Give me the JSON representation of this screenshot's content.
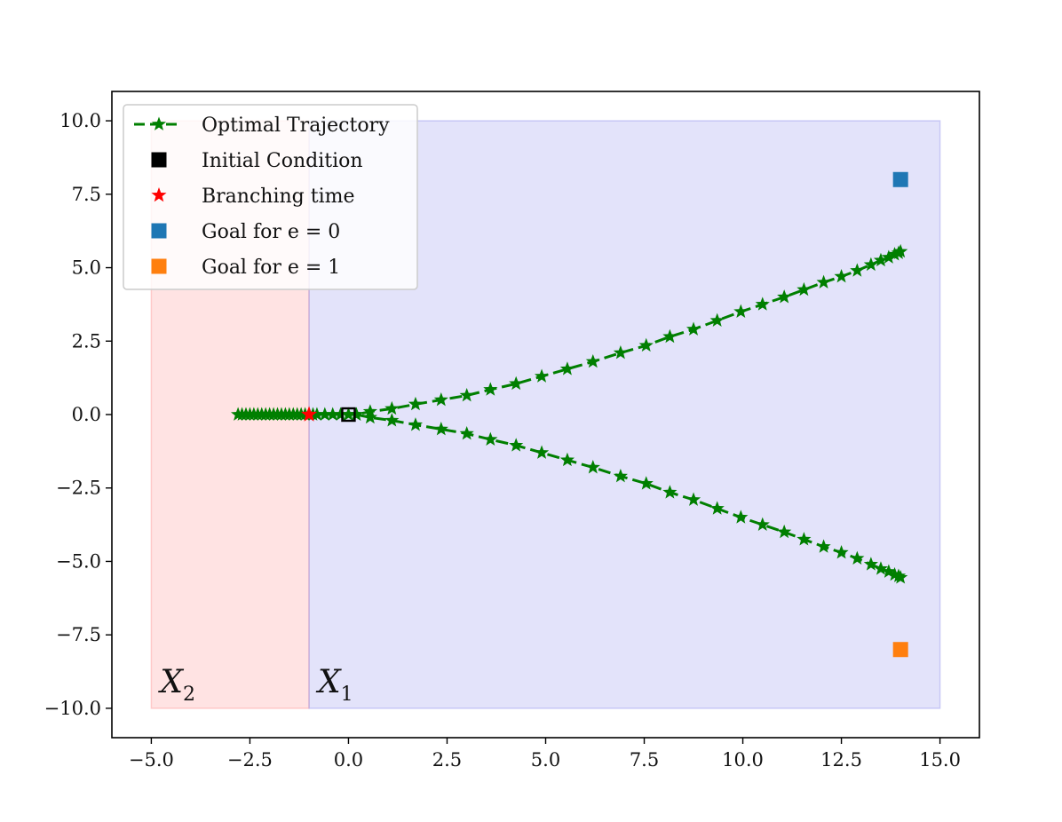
{
  "chart_data": {
    "type": "scatter",
    "xlim": [
      -6.0,
      16.0
    ],
    "ylim": [
      -11.0,
      11.0
    ],
    "x_ticks": [
      -5.0,
      -2.5,
      0.0,
      2.5,
      5.0,
      7.5,
      10.0,
      12.5,
      15.0
    ],
    "y_ticks": [
      -10.0,
      -7.5,
      -5.0,
      -2.5,
      0.0,
      2.5,
      5.0,
      7.5,
      10.0
    ],
    "x_tick_labels": [
      "−5.0",
      "−2.5",
      "0.0",
      "2.5",
      "5.0",
      "7.5",
      "10.0",
      "12.5",
      "15.0"
    ],
    "y_tick_labels": [
      "−10.0",
      "−7.5",
      "−5.0",
      "−2.5",
      "0.0",
      "2.5",
      "5.0",
      "7.5",
      "10.0"
    ],
    "grid": false,
    "legend_position": "top-left",
    "regions": [
      {
        "label": "X",
        "subscript": "2",
        "x_range": [
          -5.0,
          -1.0
        ],
        "y_range": [
          -10.0,
          10.0
        ],
        "color": "#ff9999"
      },
      {
        "label": "X",
        "subscript": "1",
        "x_range": [
          -1.0,
          15.0
        ],
        "y_range": [
          -10.0,
          10.0
        ],
        "color": "#9999ee"
      }
    ],
    "series": [
      {
        "name": "Optimal Trajectory",
        "marker": "star-dashed",
        "color": "#007f00",
        "branch_upper": {
          "x": [
            -2.8,
            -2.7,
            -2.6,
            -2.5,
            -2.4,
            -2.3,
            -2.2,
            -2.1,
            -2.0,
            -1.9,
            -1.8,
            -1.7,
            -1.6,
            -1.5,
            -1.4,
            -1.3,
            -1.2,
            -1.1,
            -1.0,
            -0.9,
            -0.8,
            -0.6,
            -0.4,
            -0.2,
            0.0,
            0.2,
            0.55,
            1.1,
            1.7,
            2.35,
            3.0,
            3.6,
            4.25,
            4.9,
            5.55,
            6.2,
            6.9,
            7.55,
            8.15,
            8.75,
            9.35,
            9.95,
            10.5,
            11.05,
            11.55,
            12.05,
            12.5,
            12.9,
            13.25,
            13.5,
            13.7,
            13.85,
            13.95,
            14.0
          ],
          "y": [
            0.0,
            0.0,
            0.0,
            0.0,
            0.0,
            0.0,
            0.0,
            0.0,
            0.0,
            0.0,
            0.0,
            0.0,
            0.0,
            0.0,
            0.0,
            0.0,
            0.0,
            0.0,
            0.0,
            0.0,
            0.0,
            0.0,
            0.0,
            0.0,
            0.0,
            0.0,
            0.1,
            0.2,
            0.35,
            0.5,
            0.65,
            0.85,
            1.05,
            1.3,
            1.55,
            1.8,
            2.1,
            2.35,
            2.65,
            2.9,
            3.2,
            3.5,
            3.75,
            4.0,
            4.25,
            4.5,
            4.7,
            4.9,
            5.1,
            5.25,
            5.35,
            5.45,
            5.5,
            5.55
          ]
        },
        "branch_lower": {
          "x": [
            0.2,
            0.55,
            1.1,
            1.7,
            2.35,
            3.0,
            3.6,
            4.25,
            4.9,
            5.55,
            6.2,
            6.9,
            7.55,
            8.15,
            8.75,
            9.35,
            9.95,
            10.5,
            11.05,
            11.55,
            12.05,
            12.5,
            12.9,
            13.25,
            13.5,
            13.7,
            13.85,
            13.95,
            14.0
          ],
          "y": [
            0.0,
            -0.1,
            -0.2,
            -0.35,
            -0.5,
            -0.65,
            -0.85,
            -1.05,
            -1.3,
            -1.55,
            -1.8,
            -2.1,
            -2.35,
            -2.65,
            -2.9,
            -3.2,
            -3.5,
            -3.75,
            -4.0,
            -4.25,
            -4.5,
            -4.7,
            -4.9,
            -5.1,
            -5.25,
            -5.35,
            -5.45,
            -5.5,
            -5.55
          ]
        }
      },
      {
        "name": "Initial Condition",
        "marker": "square-open",
        "color": "#000000",
        "x": [
          0.0
        ],
        "y": [
          0.0
        ]
      },
      {
        "name": "Branching time",
        "marker": "star",
        "color": "#ff0000",
        "x": [
          -1.0
        ],
        "y": [
          0.0
        ]
      },
      {
        "name": "Goal for e = 0",
        "marker": "square",
        "color": "#1f77b4",
        "x": [
          14.0
        ],
        "y": [
          8.0
        ]
      },
      {
        "name": "Goal for e = 1",
        "marker": "square",
        "color": "#ff7f0e",
        "x": [
          14.0
        ],
        "y": [
          -8.0
        ]
      }
    ]
  },
  "legend": {
    "items": [
      {
        "label": "Optimal Trajectory",
        "marker": "star-dashed",
        "color": "#007f00"
      },
      {
        "label": "Initial Condition",
        "marker": "square",
        "color": "#000000"
      },
      {
        "label": "Branching time",
        "marker": "star",
        "color": "#ff0000"
      },
      {
        "label": "Goal for e = 0",
        "marker": "square",
        "color": "#1f77b4"
      },
      {
        "label": "Goal for e = 1",
        "marker": "square",
        "color": "#ff7f0e"
      }
    ]
  }
}
